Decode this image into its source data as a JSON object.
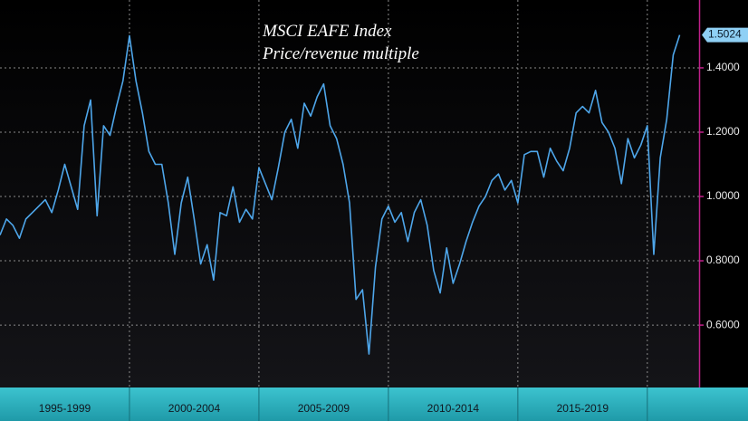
{
  "chart_data": {
    "type": "line",
    "title": "MSCI EAFE Index",
    "subtitle": "Price/revenue multiple",
    "xlim": [
      1995,
      2022
    ],
    "ylim": [
      0.406,
      1.611
    ],
    "yticks": [
      {
        "value": 0.6,
        "label": "0.6000"
      },
      {
        "value": 0.8,
        "label": "0.8000"
      },
      {
        "value": 1.0,
        "label": "1.0000"
      },
      {
        "value": 1.2,
        "label": "1.2000"
      },
      {
        "value": 1.4,
        "label": "1.4000"
      }
    ],
    "xticks": [
      {
        "value": 1997.5,
        "label": "1995-1999"
      },
      {
        "value": 2002.5,
        "label": "2000-2004"
      },
      {
        "value": 2007.5,
        "label": "2005-2009"
      },
      {
        "value": 2012.5,
        "label": "2010-2014"
      },
      {
        "value": 2017.5,
        "label": "2015-2019"
      }
    ],
    "xgrid": [
      2000,
      2005,
      2010,
      2015,
      2020
    ],
    "grid": true,
    "series": [
      {
        "color": "#4ea6ea",
        "x": [
          1995,
          1995.25,
          1995.5,
          1995.75,
          1996,
          1996.25,
          1996.5,
          1996.75,
          1997,
          1997.25,
          1997.5,
          1997.75,
          1998,
          1998.25,
          1998.5,
          1998.75,
          1999,
          1999.25,
          1999.5,
          1999.75,
          2000,
          2000.25,
          2000.5,
          2000.75,
          2001,
          2001.25,
          2001.5,
          2001.75,
          2002,
          2002.25,
          2002.5,
          2002.75,
          2003,
          2003.25,
          2003.5,
          2003.75,
          2004,
          2004.25,
          2004.5,
          2004.75,
          2005,
          2005.25,
          2005.5,
          2005.75,
          2006,
          2006.25,
          2006.5,
          2006.75,
          2007,
          2007.25,
          2007.5,
          2007.75,
          2008,
          2008.25,
          2008.5,
          2008.75,
          2009,
          2009.25,
          2009.5,
          2009.75,
          2010,
          2010.25,
          2010.5,
          2010.75,
          2011,
          2011.25,
          2011.5,
          2011.75,
          2012,
          2012.25,
          2012.5,
          2012.75,
          2013,
          2013.25,
          2013.5,
          2013.75,
          2014,
          2014.25,
          2014.5,
          2014.75,
          2015,
          2015.25,
          2015.5,
          2015.75,
          2016,
          2016.25,
          2016.5,
          2016.75,
          2017,
          2017.25,
          2017.5,
          2017.75,
          2018,
          2018.25,
          2018.5,
          2018.75,
          2019,
          2019.25,
          2019.5,
          2019.75,
          2020,
          2020.25,
          2020.5,
          2020.75,
          2021,
          2021.25
        ],
        "values": [
          0.88,
          0.93,
          0.91,
          0.87,
          0.93,
          0.95,
          0.97,
          0.99,
          0.95,
          1.02,
          1.1,
          1.03,
          0.96,
          1.22,
          1.3,
          0.94,
          1.22,
          1.19,
          1.28,
          1.36,
          1.5,
          1.36,
          1.26,
          1.14,
          1.1,
          1.1,
          0.98,
          0.82,
          0.98,
          1.06,
          0.93,
          0.79,
          0.85,
          0.74,
          0.95,
          0.94,
          1.03,
          0.92,
          0.96,
          0.93,
          1.09,
          1.04,
          0.99,
          1.09,
          1.2,
          1.24,
          1.15,
          1.29,
          1.25,
          1.31,
          1.35,
          1.22,
          1.18,
          1.1,
          0.98,
          0.68,
          0.71,
          0.51,
          0.78,
          0.93,
          0.97,
          0.92,
          0.95,
          0.86,
          0.95,
          0.99,
          0.91,
          0.77,
          0.7,
          0.84,
          0.73,
          0.79,
          0.86,
          0.92,
          0.97,
          1.0,
          1.05,
          1.07,
          1.02,
          1.05,
          0.98,
          1.13,
          1.14,
          1.14,
          1.06,
          1.15,
          1.11,
          1.08,
          1.15,
          1.26,
          1.28,
          1.26,
          1.33,
          1.23,
          1.2,
          1.15,
          1.04,
          1.18,
          1.12,
          1.16,
          1.22,
          0.82,
          1.12,
          1.24,
          1.44,
          1.5024
        ]
      }
    ]
  }
}
